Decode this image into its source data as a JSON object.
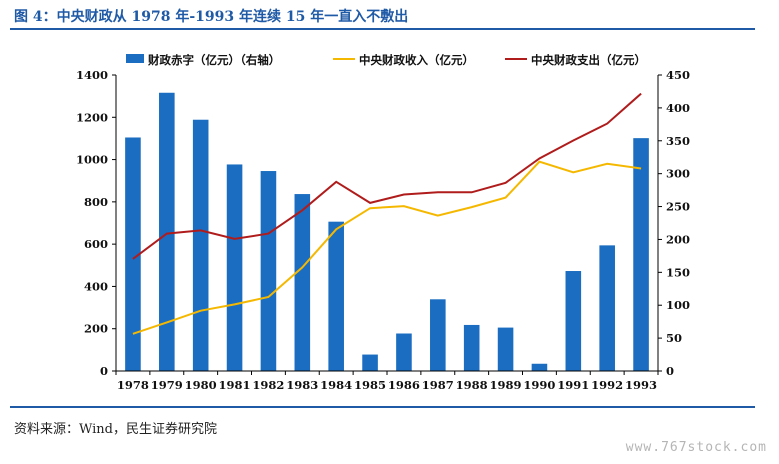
{
  "header": {
    "title": "图 4：中央财政从 1978 年-1993 年连续 15 年一直入不敷出"
  },
  "footer": {
    "source": "资料来源：Wind，民生证券研究院",
    "watermark": "www.767stock.com"
  },
  "colors": {
    "title": "#1f5aa6",
    "deficit_bar": "#1a6dc0",
    "revenue_line": "#f5b800",
    "expenditure_line": "#b01c1c"
  },
  "chart_data": {
    "type": "bar",
    "categories": [
      "1978",
      "1979",
      "1980",
      "1981",
      "1982",
      "1983",
      "1984",
      "1985",
      "1986",
      "1987",
      "1988",
      "1989",
      "1990",
      "1991",
      "1992",
      "1993"
    ],
    "left_axis": {
      "ylim": [
        0,
        1400
      ],
      "ticks": [
        0,
        200,
        400,
        600,
        800,
        1000,
        1200,
        1400
      ]
    },
    "right_axis": {
      "ylim": [
        0,
        450
      ],
      "ticks": [
        0,
        50,
        100,
        150,
        200,
        250,
        300,
        350,
        400,
        450
      ]
    },
    "series": [
      {
        "name": "财政赤字（亿元）（右轴）",
        "type": "bar",
        "axis": "right",
        "values": [
          355,
          423,
          382,
          314,
          304,
          269,
          227,
          25,
          57,
          109,
          70,
          66,
          11,
          152,
          191,
          354
        ]
      },
      {
        "name": "中央财政收入（亿元）",
        "type": "line",
        "axis": "left",
        "values": [
          176,
          230,
          285,
          315,
          350,
          490,
          670,
          770,
          780,
          735,
          775,
          820,
          990,
          940,
          980,
          958
        ]
      },
      {
        "name": "中央财政支出（亿元）",
        "type": "line",
        "axis": "left",
        "values": [
          530,
          650,
          665,
          625,
          650,
          760,
          895,
          795,
          835,
          845,
          845,
          890,
          1005,
          1090,
          1170,
          1312
        ]
      }
    ],
    "legend_position": "top",
    "grid": false
  }
}
